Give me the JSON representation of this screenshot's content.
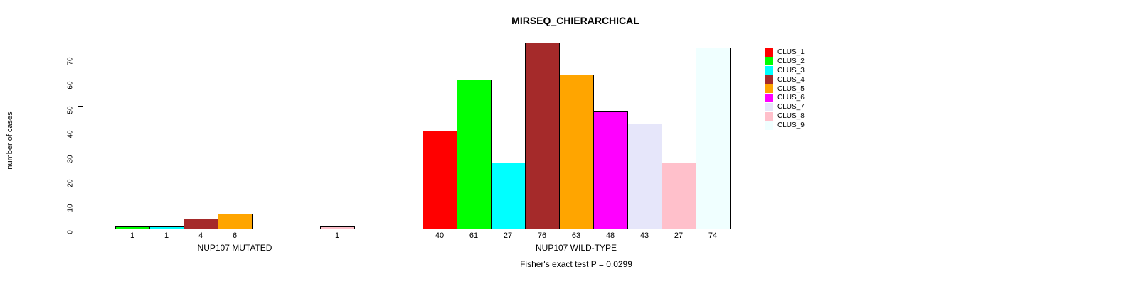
{
  "chart_data": {
    "type": "bar",
    "title": "MIRSEQ_CHIERARCHICAL",
    "ylabel": "number of cases",
    "xlabel": "",
    "ylim": [
      0,
      70
    ],
    "yticks": [
      0,
      10,
      20,
      30,
      40,
      50,
      60,
      70
    ],
    "grid": false,
    "annotation": "Fisher's exact test P = 0.0299",
    "legend": {
      "position": "right",
      "entries": [
        {
          "label": "CLUS_1",
          "color": "#FF0000"
        },
        {
          "label": "CLUS_2",
          "color": "#00FF00"
        },
        {
          "label": "CLUS_3",
          "color": "#00FFFF"
        },
        {
          "label": "CLUS_4",
          "color": "#A52A2A"
        },
        {
          "label": "CLUS_5",
          "color": "#FFA500"
        },
        {
          "label": "CLUS_6",
          "color": "#FF00FF"
        },
        {
          "label": "CLUS_7",
          "color": "#E6E6FA"
        },
        {
          "label": "CLUS_8",
          "color": "#FFC0CB"
        },
        {
          "label": "CLUS_9",
          "color": "#F0FFFF"
        }
      ]
    },
    "categories": [
      "CLUS_1",
      "CLUS_2",
      "CLUS_3",
      "CLUS_4",
      "CLUS_5",
      "CLUS_6",
      "CLUS_7",
      "CLUS_8",
      "CLUS_9"
    ],
    "groups": [
      {
        "label": "NUP107 MUTATED",
        "values": [
          0,
          1,
          1,
          4,
          6,
          0,
          0,
          1,
          0
        ]
      },
      {
        "label": "NUP107 WILD-TYPE",
        "values": [
          40,
          61,
          27,
          76,
          63,
          48,
          43,
          27,
          74
        ]
      }
    ]
  }
}
